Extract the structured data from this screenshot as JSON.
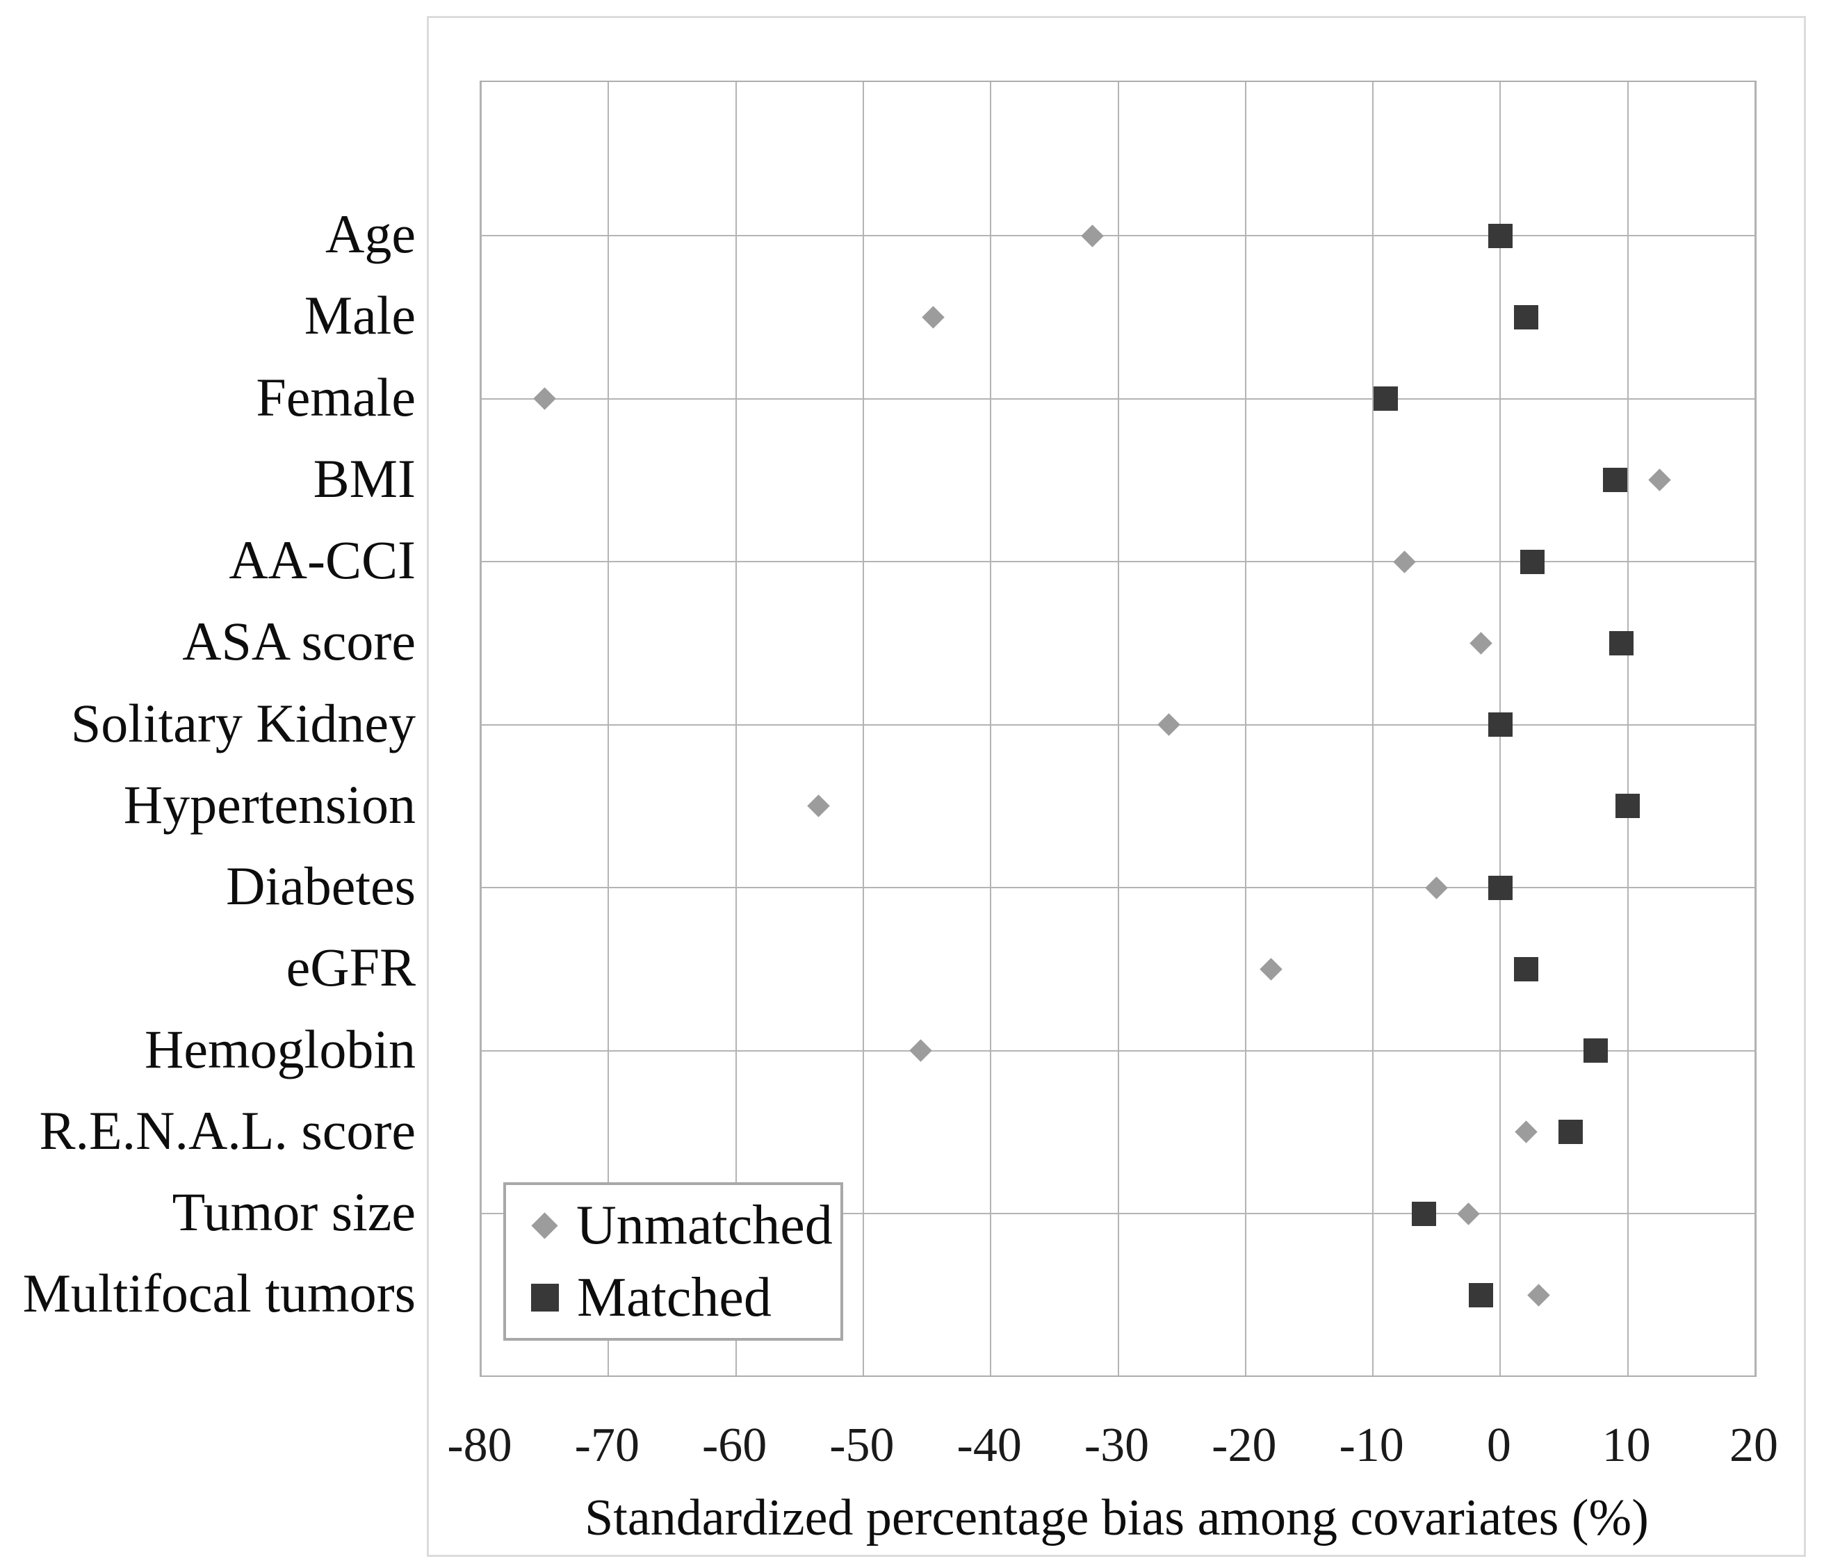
{
  "chart_data": {
    "type": "scatter",
    "title": "",
    "xlabel": "Standardized percentage bias among covariates (%)",
    "xlim": [
      -80,
      20
    ],
    "x_ticks": [
      -80,
      -70,
      -60,
      -50,
      -40,
      -30,
      -20,
      -10,
      0,
      10,
      20
    ],
    "categories": [
      "Age",
      "Male",
      "Female",
      "BMI",
      "AA-CCI",
      "ASA score",
      "Solitary Kidney",
      "Hypertension",
      "Diabetes",
      "eGFR",
      "Hemoglobin",
      "R.E.N.A.L. score",
      "Tumor size",
      "Multifocal tumors"
    ],
    "series": [
      {
        "name": "Unmatched",
        "marker": "diamond",
        "color": "#9c9c9c",
        "values": [
          -32,
          -44.5,
          -75,
          12.5,
          -7.5,
          -1.5,
          -26,
          -53.5,
          -5,
          -18,
          -45.5,
          2,
          -2.5,
          3
        ]
      },
      {
        "name": "Matched",
        "marker": "square",
        "color": "#383838",
        "values": [
          0,
          2,
          -9,
          9,
          2.5,
          9.5,
          0,
          10,
          0,
          2,
          7.5,
          5.5,
          -6,
          -1.5
        ]
      }
    ],
    "legend_position": "inside-bottom-left",
    "grid": {
      "vertical_ticks": true,
      "horizontal_on_category_rows": [
        0,
        2,
        4,
        6,
        8,
        10,
        12
      ],
      "gridline_color": "#b4b4b4",
      "plot_border_color": "#adadad",
      "figure_border_color": "#dcdcdc"
    }
  }
}
